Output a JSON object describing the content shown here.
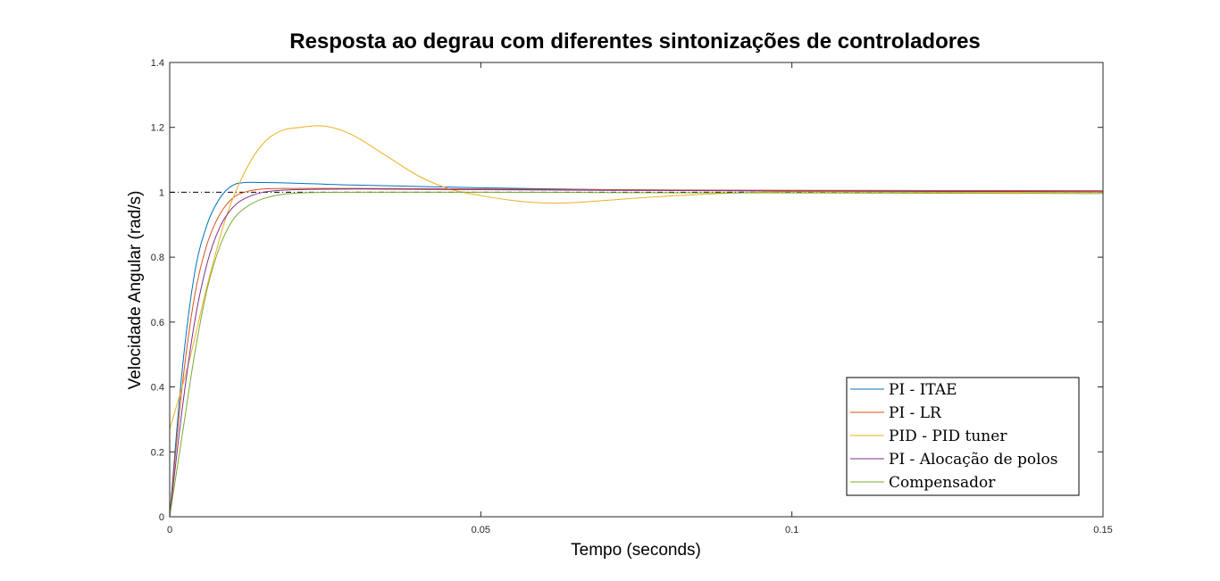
{
  "chart_data": {
    "type": "line",
    "title": "Resposta ao degrau com diferentes sintonizações de controladores",
    "xlabel": "Tempo (seconds)",
    "ylabel": "Velocidade Angular (rad/s)",
    "xlim": [
      0,
      0.15
    ],
    "ylim": [
      0,
      1.4
    ],
    "xticks": [
      "0",
      "0.05",
      "0.1",
      "0.15"
    ],
    "yticks": [
      "0",
      "0.2",
      "0.4",
      "0.6",
      "0.8",
      "1",
      "1.2",
      "1.4"
    ],
    "grid": false,
    "legend_position": "bottom-right",
    "reference_line": 1,
    "series": [
      {
        "name": "PI - ITAE",
        "color": "#0072BD",
        "x": [
          0,
          0.002,
          0.004,
          0.006,
          0.008,
          0.01,
          0.012,
          0.015,
          0.02,
          0.03,
          0.05,
          0.07,
          0.1,
          0.15
        ],
        "y": [
          0,
          0.45,
          0.75,
          0.9,
          0.98,
          1.02,
          1.03,
          1.03,
          1.028,
          1.022,
          1.014,
          1.008,
          1.004,
          1.001
        ]
      },
      {
        "name": "PI - LR",
        "color": "#D95319",
        "x": [
          0,
          0.002,
          0.004,
          0.006,
          0.008,
          0.01,
          0.012,
          0.015,
          0.02,
          0.03,
          0.05,
          0.07,
          0.1,
          0.15
        ],
        "y": [
          0,
          0.4,
          0.68,
          0.84,
          0.93,
          0.98,
          1.0,
          1.01,
          1.012,
          1.012,
          1.01,
          1.008,
          1.006,
          1.005
        ]
      },
      {
        "name": "PID - PID tuner",
        "color": "#EDB120",
        "x": [
          0,
          0.003,
          0.006,
          0.009,
          0.012,
          0.015,
          0.018,
          0.021,
          0.024,
          0.027,
          0.03,
          0.035,
          0.04,
          0.045,
          0.05,
          0.055,
          0.06,
          0.065,
          0.07,
          0.08,
          0.09,
          0.1,
          0.12,
          0.15
        ],
        "y": [
          0.27,
          0.47,
          0.71,
          0.92,
          1.06,
          1.15,
          1.19,
          1.2,
          1.205,
          1.195,
          1.17,
          1.11,
          1.05,
          1.01,
          0.99,
          0.975,
          0.967,
          0.968,
          0.975,
          0.988,
          0.997,
          1.002,
          1.0,
          1.0
        ]
      },
      {
        "name": "PI - Alocação de polos",
        "color": "#7E2F8E",
        "x": [
          0,
          0.002,
          0.004,
          0.006,
          0.008,
          0.01,
          0.012,
          0.015,
          0.02,
          0.03,
          0.05,
          0.07,
          0.1,
          0.15
        ],
        "y": [
          0,
          0.33,
          0.6,
          0.78,
          0.89,
          0.95,
          0.98,
          1.0,
          1.008,
          1.01,
          1.008,
          1.006,
          1.004,
          1.002
        ]
      },
      {
        "name": "Compensador",
        "color": "#77AC30",
        "x": [
          0,
          0.002,
          0.004,
          0.006,
          0.008,
          0.01,
          0.012,
          0.015,
          0.02,
          0.03,
          0.05,
          0.07,
          0.1,
          0.15
        ],
        "y": [
          0,
          0.25,
          0.5,
          0.7,
          0.83,
          0.91,
          0.95,
          0.98,
          0.997,
          1.0,
          1.0,
          0.999,
          0.998,
          0.996
        ]
      }
    ]
  }
}
